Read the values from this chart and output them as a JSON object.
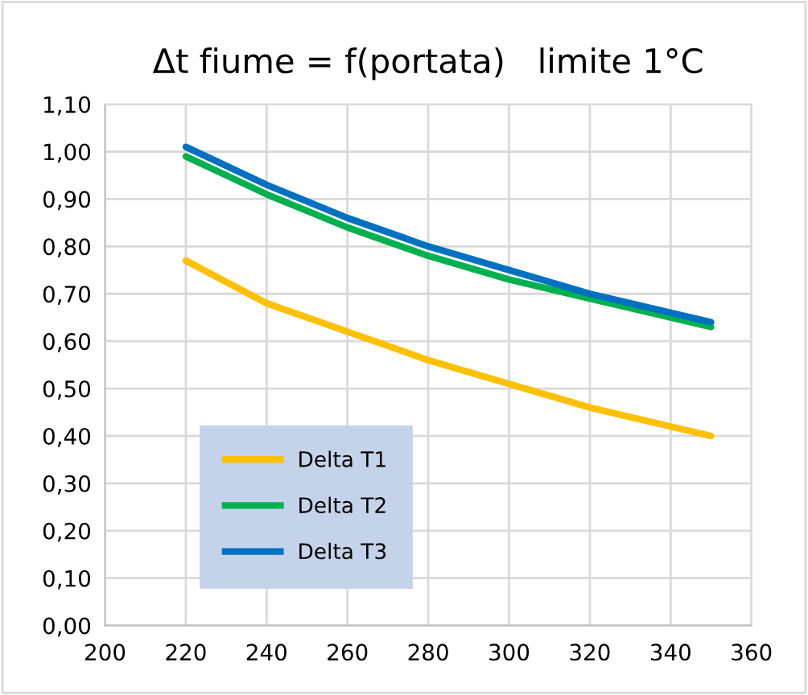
{
  "chart_data": {
    "type": "line",
    "title": "Δt fiume = f(portata)   limite 1°C",
    "x": [
      220,
      240,
      260,
      280,
      300,
      320,
      340,
      350
    ],
    "series": [
      {
        "name": "Delta T1",
        "color": "#ffc000",
        "values": [
          0.77,
          0.68,
          0.62,
          0.56,
          0.51,
          0.46,
          0.42,
          0.4
        ]
      },
      {
        "name": "Delta T2",
        "color": "#00b050",
        "values": [
          0.99,
          0.91,
          0.84,
          0.78,
          0.73,
          0.69,
          0.65,
          0.63
        ]
      },
      {
        "name": "Delta T3",
        "color": "#0070c0",
        "values": [
          1.01,
          0.93,
          0.86,
          0.8,
          0.75,
          0.7,
          0.66,
          0.64
        ]
      }
    ],
    "xlim": [
      200,
      360
    ],
    "xticks": [
      200,
      220,
      240,
      260,
      280,
      300,
      320,
      340,
      360
    ],
    "ylim": [
      0,
      1.1
    ],
    "yticks": [
      {
        "value": 0,
        "label": "0,00"
      },
      {
        "value": 0.1,
        "label": "0,10"
      },
      {
        "value": 0.2,
        "label": "0,20"
      },
      {
        "value": 0.3,
        "label": "0,30"
      },
      {
        "value": 0.4,
        "label": "0,40"
      },
      {
        "value": 0.5,
        "label": "0,50"
      },
      {
        "value": 0.6,
        "label": "0,60"
      },
      {
        "value": 0.7,
        "label": "0,70"
      },
      {
        "value": 0.8,
        "label": "0,80"
      },
      {
        "value": 0.9,
        "label": "0,90"
      },
      {
        "value": 1.0,
        "label": "1,00"
      },
      {
        "value": 1.1,
        "label": "1,10"
      }
    ],
    "grid": true,
    "legend": "bottom left",
    "marker": "none",
    "line_style": "solid"
  }
}
